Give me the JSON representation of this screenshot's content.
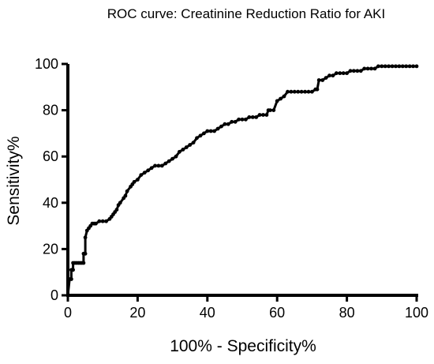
{
  "chart_data": {
    "type": "line",
    "title": "ROC curve: Creatinine Reduction Ratio  for AKI",
    "xlabel": "100% - Specificity%",
    "ylabel": "Sensitivity%",
    "xlim": [
      0,
      100
    ],
    "ylim": [
      0,
      100
    ],
    "xticks": [
      0,
      20,
      40,
      60,
      80,
      100
    ],
    "yticks": [
      0,
      20,
      40,
      60,
      80,
      100
    ],
    "grid": false,
    "legend": "none",
    "line_color": "#000000",
    "series": [
      {
        "x": [
          0,
          0.5,
          1,
          1,
          1.5,
          1.5,
          2,
          2.5,
          3,
          3.5,
          4,
          4.5,
          4.5,
          5,
          5,
          5.5,
          6,
          6.5,
          7,
          7.5,
          8,
          9,
          10,
          11,
          12,
          12.5,
          13,
          13.5,
          14,
          14.5,
          15,
          16,
          16.5,
          17,
          18,
          18.5,
          19,
          20,
          21,
          22,
          23,
          24,
          25,
          26,
          27,
          28,
          29,
          30,
          31,
          32,
          33,
          34,
          35,
          36,
          37,
          38,
          39,
          40,
          41,
          42,
          43,
          44,
          45,
          46,
          47,
          48,
          49,
          50,
          51,
          52,
          53,
          54,
          55,
          56,
          57,
          57.5,
          58,
          59,
          60,
          61,
          62,
          63,
          64,
          65,
          66,
          67,
          68,
          69,
          70,
          71,
          71.5,
          72,
          73,
          74,
          75,
          76,
          77,
          78,
          79,
          80,
          81,
          82,
          83,
          84,
          85,
          86,
          87,
          88,
          89,
          90,
          91,
          92,
          93,
          94,
          95,
          96,
          97,
          98,
          99,
          100
        ],
        "y": [
          0,
          7,
          7,
          11,
          11,
          14,
          14,
          14,
          14,
          14,
          14,
          14,
          18,
          18,
          25,
          28,
          29,
          30,
          31,
          31,
          31,
          32,
          32,
          32,
          33,
          34,
          35,
          36,
          37,
          39,
          40,
          42,
          43,
          45,
          47,
          48,
          49,
          50,
          52,
          53,
          54,
          55,
          56,
          56,
          56,
          57,
          58,
          59,
          60,
          62,
          63,
          64,
          65,
          66,
          68,
          69,
          70,
          71,
          71,
          71,
          72,
          73,
          74,
          74,
          75,
          75,
          76,
          76,
          76,
          77,
          77,
          77,
          78,
          78,
          78,
          80,
          80,
          80,
          84,
          85,
          86,
          88,
          88,
          88,
          88,
          88,
          88,
          88,
          88,
          89,
          89,
          93,
          93,
          94,
          95,
          95,
          96,
          96,
          96,
          96,
          97,
          97,
          97,
          97,
          98,
          98,
          98,
          98,
          99,
          99,
          99,
          99,
          99,
          99,
          99,
          99,
          99,
          99,
          99,
          99
        ]
      }
    ]
  }
}
